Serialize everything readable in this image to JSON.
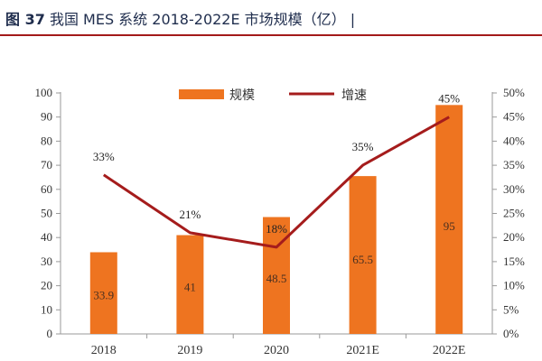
{
  "header": {
    "figure_no": "图 37",
    "title": "我国 MES 系统 2018-2022E 市场规模（亿）"
  },
  "colors": {
    "bar": "#ee7420",
    "line": "#a51c1c",
    "axis": "#9a9a9a",
    "title_rule": "#a31a1a"
  },
  "chart_data": {
    "type": "bar",
    "title": "我国 MES 系统 2018-2022E 市场规模（亿）",
    "categories": [
      "2018",
      "2019",
      "2020",
      "2021E",
      "2022E"
    ],
    "series": [
      {
        "name": "规模",
        "type": "bar",
        "axis": "left",
        "values": [
          33.9,
          41,
          48.5,
          65.5,
          95
        ],
        "labels": [
          "33.9",
          "41",
          "48.5",
          "65.5",
          "95"
        ]
      },
      {
        "name": "增速",
        "type": "line",
        "axis": "right",
        "values": [
          33,
          21,
          18,
          35,
          45
        ],
        "labels": [
          "33%",
          "21%",
          "18%",
          "35%",
          "45%"
        ]
      }
    ],
    "left_axis": {
      "min": 0,
      "max": 100,
      "step": 10,
      "ticks": [
        "0",
        "10",
        "20",
        "30",
        "40",
        "50",
        "60",
        "70",
        "80",
        "90",
        "100"
      ]
    },
    "right_axis": {
      "min": 0,
      "max": 50,
      "step": 5,
      "ticks": [
        "0%",
        "5%",
        "10%",
        "15%",
        "20%",
        "25%",
        "30%",
        "35%",
        "40%",
        "45%",
        "50%"
      ]
    },
    "legend": {
      "position": "top-center",
      "entries": [
        "规模",
        "增速"
      ]
    }
  }
}
